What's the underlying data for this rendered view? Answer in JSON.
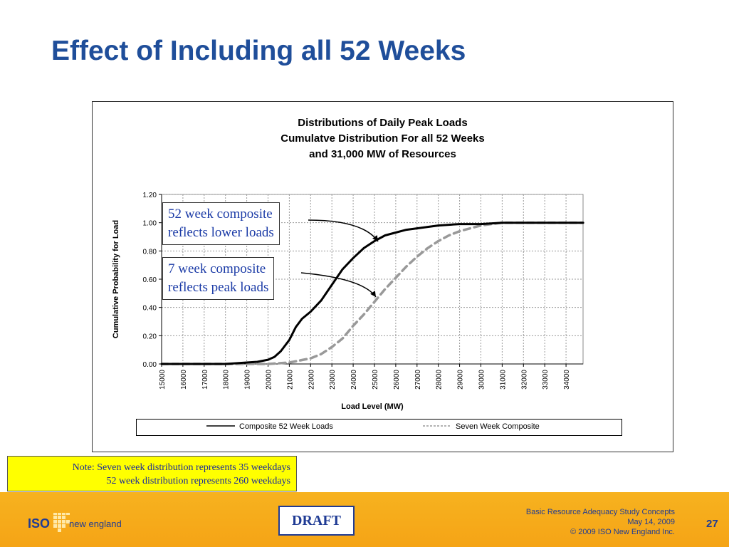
{
  "slide": {
    "title": "Effect of Including all 52 Weeks"
  },
  "chart_data": {
    "type": "line",
    "title_lines": [
      "Distributions of Daily Peak Loads",
      "Cumulatve Distribution For all 52 Weeks",
      "and 31,000 MW of Resources"
    ],
    "xlabel": "Load Level (MW)",
    "ylabel": "Cumulative Probability for Load",
    "x_ticks": [
      "15000",
      "16000",
      "17000",
      "18000",
      "19000",
      "20000",
      "21000",
      "22000",
      "23000",
      "24000",
      "25000",
      "26000",
      "27000",
      "28000",
      "29000",
      "30000",
      "31000",
      "32000",
      "33000",
      "34000"
    ],
    "y_ticks": [
      "0.00",
      "0.20",
      "0.40",
      "0.60",
      "0.80",
      "1.00",
      "1.20"
    ],
    "xlim": [
      15000,
      34800
    ],
    "ylim": [
      0,
      1.2
    ],
    "grid": true,
    "legend_position": "bottom",
    "series": [
      {
        "name": "Composite 52 Week Loads",
        "style": "solid",
        "color": "#000000",
        "x": [
          15000,
          17000,
          18000,
          19000,
          19500,
          20000,
          20300,
          20600,
          21000,
          21300,
          21600,
          22000,
          22500,
          23000,
          23500,
          24000,
          24500,
          25000,
          25500,
          26000,
          26500,
          27000,
          27500,
          28000,
          29000,
          30000,
          31000,
          32000,
          33000,
          34000,
          34800
        ],
        "y": [
          0.0,
          0.0,
          0.0,
          0.01,
          0.015,
          0.03,
          0.05,
          0.09,
          0.17,
          0.26,
          0.32,
          0.37,
          0.45,
          0.56,
          0.67,
          0.75,
          0.82,
          0.87,
          0.91,
          0.93,
          0.95,
          0.96,
          0.97,
          0.98,
          0.99,
          0.99,
          1.0,
          1.0,
          1.0,
          1.0,
          1.0
        ]
      },
      {
        "name": "Seven Week Composite",
        "style": "dashed",
        "color": "#999999",
        "x": [
          15000,
          19000,
          20000,
          21000,
          22000,
          22500,
          23000,
          23500,
          24000,
          24500,
          25000,
          25500,
          26000,
          26500,
          27000,
          27500,
          28000,
          28500,
          29000,
          29500,
          30000,
          30500,
          31000,
          32000,
          33000,
          34000,
          34800
        ],
        "y": [
          0.0,
          0.0,
          0.0,
          0.01,
          0.04,
          0.07,
          0.12,
          0.18,
          0.27,
          0.35,
          0.44,
          0.53,
          0.61,
          0.69,
          0.76,
          0.82,
          0.87,
          0.91,
          0.94,
          0.96,
          0.98,
          0.99,
          1.0,
          1.0,
          1.0,
          1.0,
          1.0
        ]
      }
    ]
  },
  "callouts": [
    {
      "lines": [
        "52 week composite",
        "reflects lower loads"
      ]
    },
    {
      "lines": [
        "7 week composite",
        "reflects peak loads"
      ]
    }
  ],
  "note": {
    "line1": "Note: Seven week distribution represents   35 weekdays",
    "line2": "52 week distribution represents 260 weekdays"
  },
  "footer": {
    "logo_iso": "ISO",
    "logo_name": "new england",
    "draft": "DRAFT",
    "info_line1": "Basic Resource Adequacy Study Concepts",
    "info_line2": "May 14, 2009",
    "info_line3": "© 2009 ISO New England Inc.",
    "page_number": "27"
  },
  "colors": {
    "title": "#1f4e9a",
    "footer_band": "#f5a416",
    "note_background": "#ffff00",
    "callout_text": "#1a3aa6"
  }
}
